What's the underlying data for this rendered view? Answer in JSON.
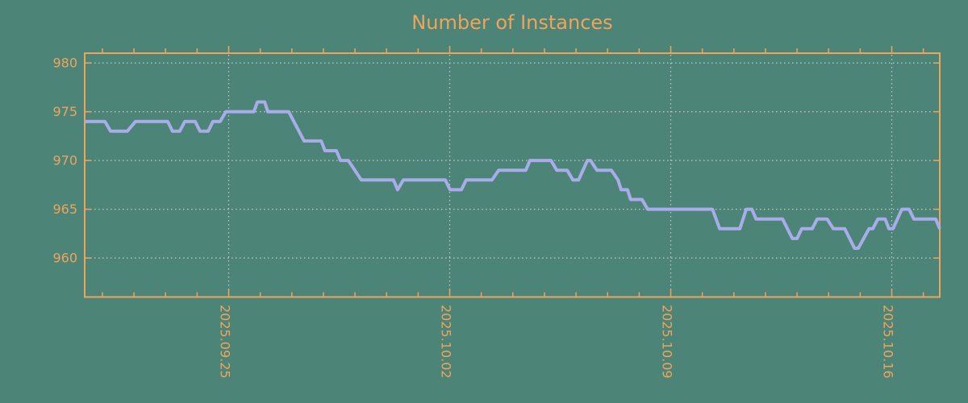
{
  "page": {
    "background_color": "#4d8478"
  },
  "chart_data": {
    "type": "line",
    "title": "Number of Instances",
    "xlabel": "",
    "ylabel": "",
    "legend": "none",
    "grid": "dotted at major ticks",
    "ylim": [
      956,
      981
    ],
    "yticks": [
      960,
      965,
      970,
      975,
      980
    ],
    "ytick_labels": [
      "960",
      "965",
      "970",
      "975",
      "980"
    ],
    "x_unit": "days relative to 2025.09.25",
    "xlim": [
      -4.56,
      22.52
    ],
    "xticks": [
      {
        "day": 0,
        "label": "2025.09.25"
      },
      {
        "day": 7,
        "label": "2025.10.02"
      },
      {
        "day": 14,
        "label": "2025.10.09"
      },
      {
        "day": 21,
        "label": "2025.10.16"
      }
    ],
    "minor_xtick_days": [
      -4,
      -3,
      -2,
      -1,
      0,
      1,
      2,
      3,
      4,
      5,
      6,
      7,
      8,
      9,
      10,
      11,
      12,
      13,
      14,
      15,
      16,
      17,
      18,
      19,
      20,
      21,
      22
    ],
    "series": [
      {
        "name": "instances",
        "points": [
          [
            -4.56,
            974
          ],
          [
            -3.92,
            974
          ],
          [
            -3.74,
            973
          ],
          [
            -3.21,
            973
          ],
          [
            -2.95,
            974
          ],
          [
            -1.93,
            974
          ],
          [
            -1.78,
            973
          ],
          [
            -1.55,
            973
          ],
          [
            -1.39,
            974
          ],
          [
            -1.06,
            974
          ],
          [
            -0.91,
            973
          ],
          [
            -0.65,
            973
          ],
          [
            -0.5,
            974
          ],
          [
            -0.27,
            974
          ],
          [
            -0.09,
            975
          ],
          [
            0.8,
            975
          ],
          [
            0.91,
            976
          ],
          [
            1.14,
            976
          ],
          [
            1.24,
            975
          ],
          [
            1.9,
            975
          ],
          [
            2.39,
            972
          ],
          [
            2.93,
            972
          ],
          [
            3.05,
            971
          ],
          [
            3.41,
            971
          ],
          [
            3.54,
            970
          ],
          [
            3.79,
            970
          ],
          [
            4.2,
            968
          ],
          [
            5.22,
            968
          ],
          [
            5.35,
            967
          ],
          [
            5.53,
            968
          ],
          [
            6.86,
            968
          ],
          [
            7.01,
            967
          ],
          [
            7.37,
            967
          ],
          [
            7.52,
            968
          ],
          [
            8.34,
            968
          ],
          [
            8.55,
            969
          ],
          [
            9.41,
            969
          ],
          [
            9.54,
            970
          ],
          [
            10.21,
            970
          ],
          [
            10.39,
            969
          ],
          [
            10.72,
            969
          ],
          [
            10.9,
            968
          ],
          [
            11.08,
            968
          ],
          [
            11.36,
            970
          ],
          [
            11.46,
            970
          ],
          [
            11.66,
            969
          ],
          [
            12.12,
            969
          ],
          [
            12.33,
            968
          ],
          [
            12.43,
            967
          ],
          [
            12.63,
            967
          ],
          [
            12.73,
            966
          ],
          [
            13.09,
            966
          ],
          [
            13.27,
            965
          ],
          [
            15.32,
            965
          ],
          [
            15.55,
            963
          ],
          [
            16.19,
            963
          ],
          [
            16.39,
            965
          ],
          [
            16.57,
            965
          ],
          [
            16.7,
            964
          ],
          [
            17.54,
            964
          ],
          [
            17.85,
            962
          ],
          [
            18.0,
            962
          ],
          [
            18.15,
            963
          ],
          [
            18.48,
            963
          ],
          [
            18.64,
            964
          ],
          [
            18.95,
            964
          ],
          [
            19.15,
            963
          ],
          [
            19.51,
            963
          ],
          [
            19.82,
            961
          ],
          [
            19.94,
            961
          ],
          [
            20.28,
            963
          ],
          [
            20.4,
            963
          ],
          [
            20.56,
            964
          ],
          [
            20.79,
            964
          ],
          [
            20.91,
            963
          ],
          [
            21.04,
            963
          ],
          [
            21.32,
            965
          ],
          [
            21.55,
            965
          ],
          [
            21.7,
            964
          ],
          [
            22.39,
            964
          ],
          [
            22.52,
            963
          ]
        ]
      }
    ],
    "colors": {
      "background": "#4d8478",
      "axes_and_labels": "#efa45c",
      "line": "#a8adea",
      "grid": "#c3cac4"
    }
  }
}
